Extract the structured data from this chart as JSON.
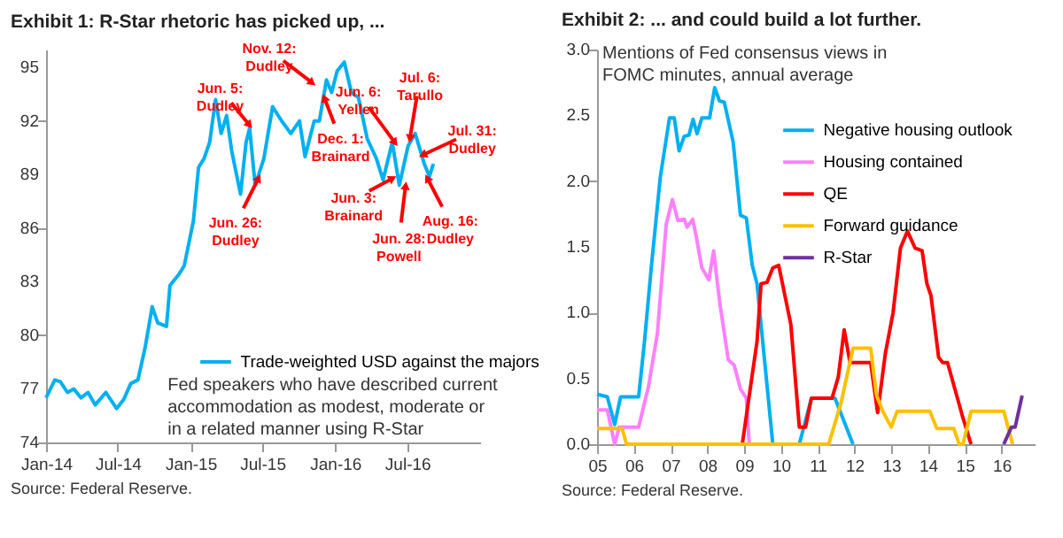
{
  "chart_data": [
    {
      "type": "line",
      "title": "Exhibit 1: R-Star rhetoric has picked up, ...",
      "xlim": [
        "2014-01-01",
        "2017-01-01"
      ],
      "xticks": [
        {
          "value": "2014-01-01",
          "label": "Jan-14"
        },
        {
          "value": "2014-07-01",
          "label": "Jul-14"
        },
        {
          "value": "2015-01-01",
          "label": "Jan-15"
        },
        {
          "value": "2015-07-01",
          "label": "Jul-15"
        },
        {
          "value": "2016-01-01",
          "label": "Jan-16"
        },
        {
          "value": "2016-07-01",
          "label": "Jul-16"
        }
      ],
      "ylim": [
        74,
        96
      ],
      "yticks": [
        74,
        77,
        80,
        83,
        86,
        89,
        92,
        95
      ],
      "grid": false,
      "legend": "bottom right",
      "x": [
        "2014-01-01",
        "2014-01-23",
        "2014-02-06",
        "2014-02-24",
        "2014-03-12",
        "2014-03-30",
        "2014-04-17",
        "2014-05-05",
        "2014-06-01",
        "2014-06-28",
        "2014-07-16",
        "2014-08-03",
        "2014-08-21",
        "2014-09-08",
        "2014-09-26",
        "2014-10-10",
        "2014-11-01",
        "2014-11-10",
        "2014-12-02",
        "2014-12-16",
        "2015-01-08",
        "2015-01-21",
        "2015-02-04",
        "2015-02-18",
        "2015-03-05",
        "2015-03-19",
        "2015-04-02",
        "2015-04-15",
        "2015-05-07",
        "2015-05-21",
        "2015-05-30",
        "2015-06-13",
        "2015-07-05",
        "2015-07-27",
        "2015-08-19",
        "2015-09-11",
        "2015-10-03",
        "2015-10-17",
        "2015-11-09",
        "2015-11-22",
        "2015-12-10",
        "2015-12-23",
        "2016-01-06",
        "2016-01-24",
        "2016-02-11",
        "2016-02-29",
        "2016-03-22",
        "2016-04-14",
        "2016-05-01",
        "2016-05-24",
        "2016-06-11",
        "2016-07-03",
        "2016-07-21",
        "2016-08-13",
        "2016-08-26",
        "2016-09-05"
      ],
      "series": [
        {
          "name": "Trade-weighted USD against the majors",
          "color": "#00b0f0",
          "values": [
            76.5,
            77.5,
            77.4,
            76.8,
            77.0,
            76.5,
            76.8,
            76.1,
            76.8,
            75.9,
            76.4,
            77.3,
            77.5,
            79.3,
            81.6,
            80.7,
            80.5,
            82.8,
            83.4,
            83.9,
            86.4,
            89.4,
            89.9,
            90.8,
            93.2,
            91.3,
            92.3,
            90.3,
            87.9,
            90.8,
            91.6,
            88.4,
            89.9,
            92.8,
            92.0,
            91.3,
            92.0,
            90.0,
            92.0,
            92.0,
            94.3,
            93.6,
            94.8,
            95.3,
            93.6,
            93.3,
            91.0,
            89.9,
            88.7,
            90.8,
            88.4,
            90.6,
            91.3,
            89.6,
            88.9,
            89.6
          ]
        }
      ],
      "annotations": [
        {
          "text": "Jun. 5:\nDudley",
          "x": "2015-06-05",
          "y": 91.6
        },
        {
          "text": "Jun. 26:\nDudley",
          "x": "2015-06-26",
          "y": 89.0
        },
        {
          "text": "Nov. 12:\nDudley",
          "x": "2015-11-12",
          "y": 94.0
        },
        {
          "text": "Dec. 1:\nBrainard",
          "x": "2015-12-01",
          "y": 93.5
        },
        {
          "text": "Jun. 6:\nYellen",
          "x": "2016-06-06",
          "y": 90.6
        },
        {
          "text": "Jul. 6:\nTarullo",
          "x": "2016-07-06",
          "y": 90.8
        },
        {
          "text": "Jul. 31:\nDudley",
          "x": "2016-07-31",
          "y": 90.0
        },
        {
          "text": "Jun. 3:\nBrainard",
          "x": "2016-06-03",
          "y": 88.9
        },
        {
          "text": "Jun. 28:\nPowell",
          "x": "2016-06-28",
          "y": 88.6
        },
        {
          "text": "Aug. 16:\nDudley",
          "x": "2016-08-16",
          "y": 89.0
        },
        "Fed speakers who have described current\naccommodation as modest, moderate or\nin a related manner using R-Star",
        "Source: Federal Reserve."
      ]
    },
    {
      "type": "line",
      "title": "Exhibit 2: ... and could build a lot further.",
      "subtitle": "Mentions of Fed consensus views in\nFOMC minutes, annual average",
      "xlim": [
        2005,
        2016.9
      ],
      "xticks": [
        {
          "value": 2005,
          "label": "05"
        },
        {
          "value": 2006,
          "label": "06"
        },
        {
          "value": 2007,
          "label": "07"
        },
        {
          "value": 2008,
          "label": "08"
        },
        {
          "value": 2009,
          "label": "09"
        },
        {
          "value": 2010,
          "label": "10"
        },
        {
          "value": 2011,
          "label": "11"
        },
        {
          "value": 2012,
          "label": "12"
        },
        {
          "value": 2013,
          "label": "13"
        },
        {
          "value": 2014,
          "label": "14"
        },
        {
          "value": 2015,
          "label": "15"
        },
        {
          "value": 2016,
          "label": "16"
        }
      ],
      "ylim": [
        0,
        3.0
      ],
      "yticks": [
        {
          "value": 0,
          "label": "0.0"
        },
        0.5,
        {
          "value": 1,
          "label": "1.0"
        },
        1.5,
        {
          "value": 2,
          "label": "2.0"
        },
        2.5,
        {
          "value": 3,
          "label": "3.0"
        }
      ],
      "grid": false,
      "legend": "top right",
      "series": [
        {
          "name": "Negative housing outlook",
          "color": "#00b0f0",
          "x": [
            2005.0,
            2005.28,
            2005.48,
            2005.64,
            2006.13,
            2006.29,
            2006.48,
            2006.72,
            2006.97,
            2007.1,
            2007.23,
            2007.37,
            2007.5,
            2007.61,
            2007.72,
            2007.85,
            2008.06,
            2008.2,
            2008.33,
            2008.46,
            2008.7,
            2008.9,
            2009.06,
            2009.22,
            2009.35,
            2009.78,
            2010.5,
            2010.83,
            2011.47,
            2011.96
          ],
          "values": [
            0.38,
            0.36,
            0.15,
            0.36,
            0.36,
            0.78,
            1.36,
            2.03,
            2.48,
            2.48,
            2.23,
            2.34,
            2.35,
            2.47,
            2.36,
            2.48,
            2.48,
            2.71,
            2.61,
            2.6,
            2.3,
            1.74,
            1.72,
            1.36,
            1.22,
            0.0,
            0.0,
            0.35,
            0.35,
            0.0
          ]
        },
        {
          "name": "Housing contained",
          "color": "#ff80ff",
          "x": [
            2005.0,
            2005.28,
            2005.48,
            2005.6,
            2006.13,
            2006.4,
            2006.64,
            2006.88,
            2007.05,
            2007.2,
            2007.37,
            2007.45,
            2007.6,
            2007.69,
            2007.85,
            2008.04,
            2008.17,
            2008.33,
            2008.57,
            2008.73,
            2008.9,
            2009.06,
            2009.14
          ],
          "values": [
            0.26,
            0.26,
            0.0,
            0.13,
            0.13,
            0.44,
            0.84,
            1.67,
            1.86,
            1.7,
            1.71,
            1.65,
            1.71,
            1.59,
            1.34,
            1.25,
            1.47,
            1.09,
            0.64,
            0.6,
            0.42,
            0.35,
            0.0
          ]
        },
        {
          "name": "QE",
          "color": "#ff0000",
          "x": [
            2008.95,
            2009.35,
            2009.46,
            2009.62,
            2009.78,
            2009.94,
            2010.27,
            2010.5,
            2010.67,
            2010.83,
            2011.39,
            2011.56,
            2011.72,
            2011.88,
            2012.44,
            2012.63,
            2012.84,
            2013.05,
            2013.25,
            2013.44,
            2013.65,
            2013.84,
            2013.97,
            2014.08,
            2014.29,
            2014.4,
            2014.53,
            2014.93,
            2015.17
          ],
          "values": [
            0.0,
            0.78,
            1.22,
            1.23,
            1.34,
            1.36,
            0.91,
            0.13,
            0.13,
            0.35,
            0.35,
            0.51,
            0.87,
            0.62,
            0.62,
            0.24,
            0.69,
            1.0,
            1.49,
            1.62,
            1.49,
            1.47,
            1.22,
            1.13,
            0.66,
            0.62,
            0.62,
            0.22,
            0.0
          ]
        },
        {
          "name": "Forward guidance",
          "color": "#ffc000",
          "x": [
            2005.0,
            2005.68,
            2005.8,
            2011.15,
            2011.3,
            2011.64,
            2011.96,
            2012.44,
            2012.6,
            2012.77,
            2013.0,
            2013.16,
            2014.05,
            2014.24,
            2014.7,
            2014.85,
            2014.95,
            2015.17,
            2016.06,
            2016.3
          ],
          "values": [
            0.12,
            0.12,
            0.0,
            0.0,
            0.0,
            0.32,
            0.73,
            0.73,
            0.37,
            0.25,
            0.13,
            0.25,
            0.25,
            0.12,
            0.12,
            0.0,
            0.0,
            0.25,
            0.25,
            0.0
          ]
        },
        {
          "name": "R-Star",
          "color": "#7030a0",
          "x": [
            2016.06,
            2016.27,
            2016.37,
            2016.56
          ],
          "values": [
            0.0,
            0.13,
            0.13,
            0.37
          ]
        }
      ],
      "annotations": [
        "Source: Federal Reserve."
      ]
    }
  ]
}
